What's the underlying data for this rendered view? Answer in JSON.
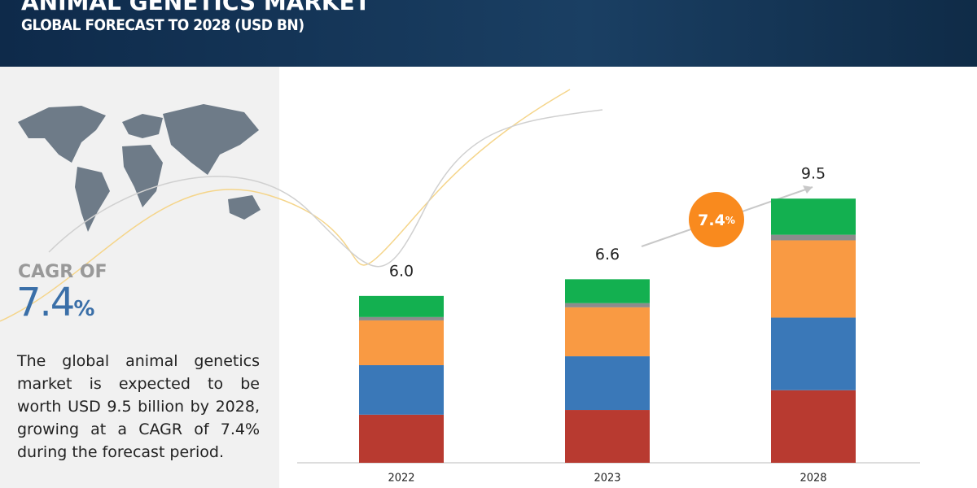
{
  "header": {
    "title": "ANIMAL GENETICS MARKET",
    "subtitle": "GLOBAL FORECAST TO 2028 (USD BN)"
  },
  "cagr": {
    "label": "CAGR OF",
    "value": "7.4",
    "unit": "%"
  },
  "description": "The global animal genetics market is expected to be worth USD 9.5 billion by 2028, growing at a CAGR of 7.4% during the forecast period.",
  "chart_data": {
    "type": "stacked_bar",
    "categories": [
      "2022",
      "2023",
      "2028"
    ],
    "series": [
      {
        "color": "#b83a30",
        "values": [
          1.73,
          1.9,
          2.61
        ]
      },
      {
        "color": "#3a78b8",
        "values": [
          1.78,
          1.93,
          2.61
        ]
      },
      {
        "color": "#f99a43",
        "values": [
          1.61,
          1.76,
          2.78
        ]
      },
      {
        "color": "#8c8c8c",
        "values": [
          0.12,
          0.15,
          0.2
        ]
      },
      {
        "color": "#13b050",
        "values": [
          0.76,
          0.86,
          1.3
        ]
      }
    ],
    "totals": [
      6.0,
      6.6,
      9.5
    ],
    "value_labels": [
      "6.0",
      "6.6",
      "9.5"
    ],
    "ylim": [
      0,
      10.5
    ],
    "badge": {
      "value": "7.4",
      "unit": "%",
      "color": "#f98a1e"
    }
  }
}
